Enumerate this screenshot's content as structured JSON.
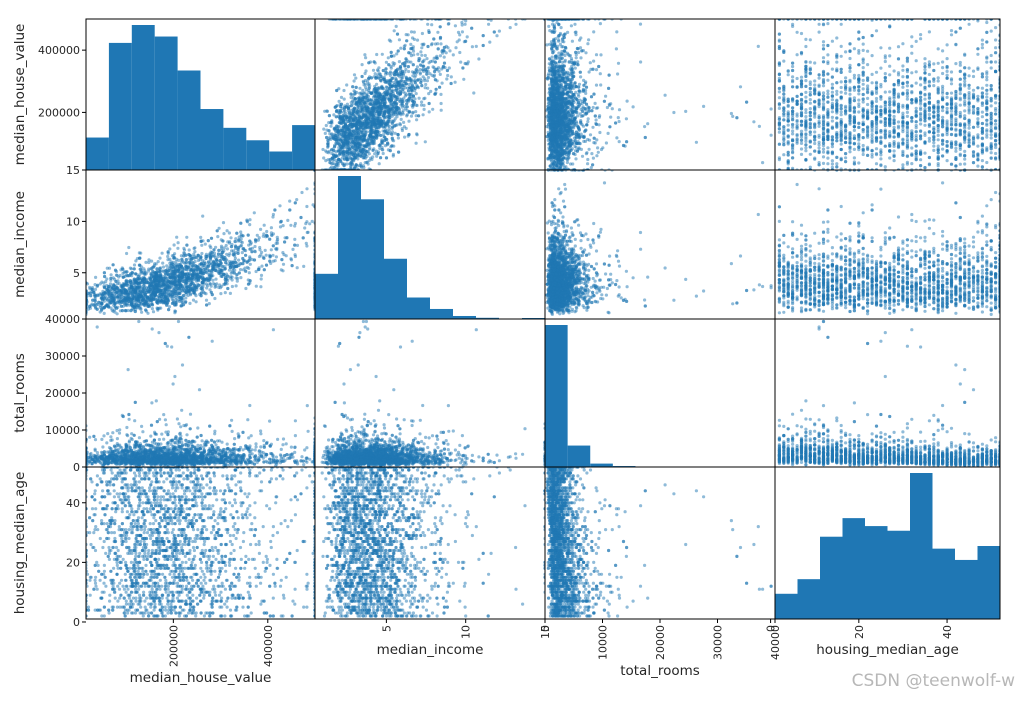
{
  "chart_data": {
    "type": "scatter_matrix",
    "variables": [
      "median_house_value",
      "median_income",
      "total_rooms",
      "housing_median_age"
    ],
    "axes": {
      "median_house_value": {
        "range": [
          14999,
          500001
        ],
        "ticks": [
          200000,
          400000
        ],
        "tick_labels": [
          "200000",
          "400000"
        ]
      },
      "median_income": {
        "range": [
          0.5,
          15.0
        ],
        "ticks": [
          5,
          10,
          15
        ],
        "tick_labels": [
          "5",
          "10",
          "15"
        ]
      },
      "total_rooms": {
        "range": [
          0,
          40000
        ],
        "ticks": [
          0,
          10000,
          20000,
          30000,
          40000
        ],
        "tick_labels": [
          "0",
          "10000",
          "20000",
          "30000",
          "40000"
        ]
      },
      "housing_median_age": {
        "range": [
          1,
          52
        ],
        "ticks": [
          0,
          20,
          40
        ],
        "tick_labels": [
          "0",
          "20",
          "40"
        ]
      }
    },
    "histograms": {
      "median_house_value": {
        "bin_edges": [
          14999,
          63499,
          111999,
          160499,
          208999,
          257499,
          305999,
          354499,
          402999,
          451499,
          500001
        ],
        "counts": [
          1070,
          4190,
          4780,
          4400,
          3280,
          2010,
          1390,
          980,
          610,
          1480
        ]
      },
      "median_income": {
        "bin_edges": [
          0.5,
          1.95,
          3.4,
          4.85,
          6.3,
          7.75,
          9.2,
          10.65,
          12.1,
          13.55,
          15.0
        ],
        "counts": [
          2250,
          7120,
          5960,
          3000,
          1070,
          500,
          150,
          60,
          20,
          50
        ]
      },
      "total_rooms": {
        "bin_edges": [
          2,
          3935,
          7868,
          11801,
          15734,
          19667,
          23600,
          27533,
          31466,
          35399,
          39320
        ],
        "counts": [
          17550,
          2650,
          420,
          120,
          40,
          20,
          10,
          5,
          3,
          2
        ]
      },
      "housing_median_age": {
        "bin_edges": [
          1,
          6.1,
          11.2,
          16.3,
          21.4,
          26.5,
          31.6,
          36.7,
          41.8,
          46.9,
          52
        ],
        "counts": [
          760,
          1200,
          2480,
          3040,
          2800,
          2660,
          4400,
          2120,
          1780,
          2200
        ]
      }
    },
    "point_color": "#1f77b4",
    "point_alpha": 0.5,
    "hist_color": "#1f77b4"
  },
  "watermark": "CSDN @teenwolf-w"
}
